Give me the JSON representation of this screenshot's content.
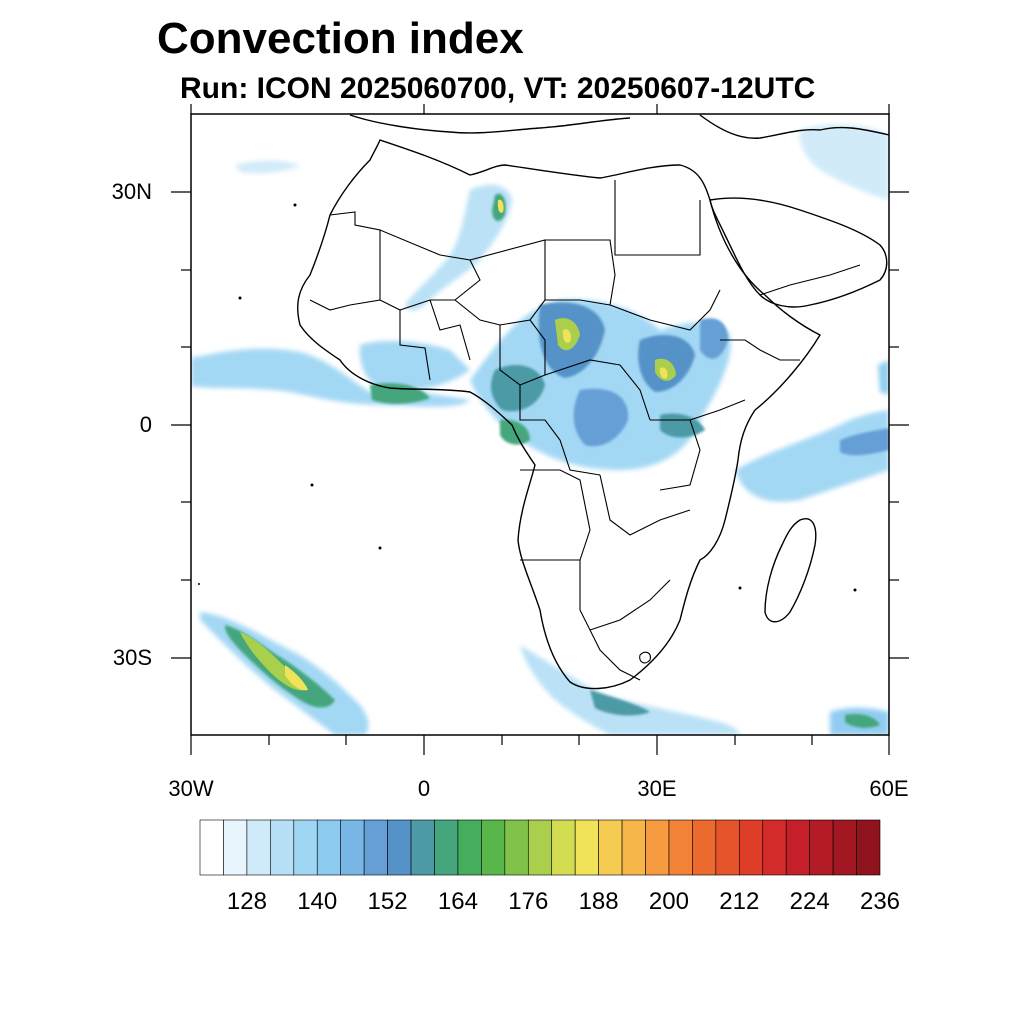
{
  "title": "Convection index",
  "subtitle": "Run: ICON 2025060700,  VT: 20250607-12UTC",
  "axes": {
    "lat_labels": [
      "30N",
      "0",
      "30S"
    ],
    "lon_labels": [
      "30W",
      "0",
      "30E",
      "60E"
    ],
    "lat_range": [
      -40,
      40
    ],
    "lon_range": [
      -30,
      60
    ]
  },
  "colorbar": {
    "labels": [
      "128",
      "140",
      "152",
      "164",
      "176",
      "188",
      "200",
      "212",
      "224",
      "236"
    ],
    "colors": [
      "#ffffff",
      "#e9f5fc",
      "#cfeaf9",
      "#b7e0f6",
      "#9fd6f4",
      "#8ccaf0",
      "#78b6e6",
      "#659fd6",
      "#5492c8",
      "#4c9aa6",
      "#45a67e",
      "#44ad5e",
      "#59b64a",
      "#80c24a",
      "#a9cf4c",
      "#d2dd52",
      "#f0e35a",
      "#f6cb52",
      "#f7b64a",
      "#f69b40",
      "#f28236",
      "#ec6a2e",
      "#e5532a",
      "#de3d28",
      "#d32b2a",
      "#c41f2a",
      "#b31b27",
      "#a11822",
      "#8f141d"
    ]
  },
  "legend": {
    "coastline_color": "#000000"
  }
}
